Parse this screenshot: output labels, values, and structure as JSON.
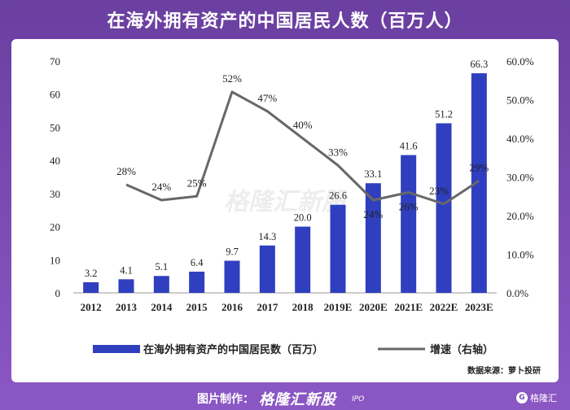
{
  "header": {
    "title": "在海外拥有资产的中国居民人数（百万人）"
  },
  "chart_data": {
    "type": "bar",
    "title": "在海外拥有资产的中国居民人数（百万人）",
    "categories": [
      "2012",
      "2013",
      "2014",
      "2015",
      "2016",
      "2017",
      "2018",
      "2019E",
      "2020E",
      "2021E",
      "2022E",
      "2023E"
    ],
    "series": [
      {
        "name": "在海外拥有资产的中国居民数（百万）",
        "type": "bar",
        "axis": "left",
        "values": [
          3.2,
          4.1,
          5.1,
          6.4,
          9.7,
          14.3,
          20.0,
          26.6,
          33.1,
          41.6,
          51.2,
          66.3
        ],
        "labels": [
          "3.2",
          "4.1",
          "5.1",
          "6.4",
          "9.7",
          "14.3",
          "20.0",
          "26.6",
          "33.1",
          "41.6",
          "51.2",
          "66.3"
        ]
      },
      {
        "name": "增速（右轴）",
        "type": "line",
        "axis": "right",
        "values": [
          null,
          28,
          24,
          25,
          52,
          47,
          40,
          33,
          24,
          26,
          23,
          29
        ],
        "labels": [
          "",
          "28%",
          "24%",
          "25%",
          "52%",
          "47%",
          "40%",
          "33%",
          "24%",
          "26%",
          "23%",
          "29%"
        ]
      }
    ],
    "ylim": [
      0,
      70
    ],
    "yticks": [
      "0",
      "10",
      "20",
      "30",
      "40",
      "50",
      "60",
      "70"
    ],
    "y2lim": [
      0,
      60
    ],
    "y2ticks": [
      "0.0%",
      "10.0%",
      "20.0%",
      "30.0%",
      "40.0%",
      "50.0%",
      "60.0%"
    ],
    "legend_position": "bottom",
    "source": "数据来源：萝卜投研",
    "watermark": "格隆汇新股",
    "colors": {
      "bar": "#2f3fbf",
      "line": "#686868",
      "title_bg": "#6a3fa0"
    }
  },
  "footer": {
    "credit_label": "图片制作：",
    "credit_brand": "格隆汇新股",
    "credit_ipo": "IPO",
    "corner_badge": "格隆汇",
    "corner_icon": "G"
  }
}
